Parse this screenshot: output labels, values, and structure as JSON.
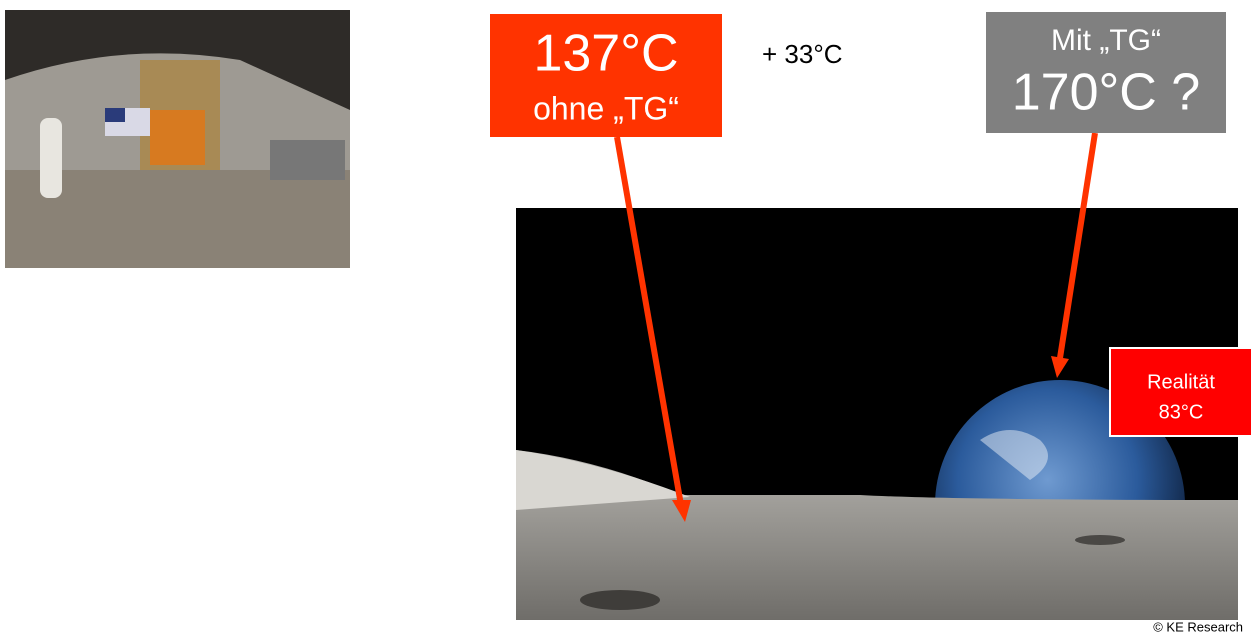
{
  "left_box": {
    "temperature": "137°C",
    "caption": "ohne „TG“"
  },
  "difference": "+ 33°C",
  "right_box": {
    "caption": "Mit „TG“",
    "temperature": "170°C ?"
  },
  "reality_box": {
    "label": "Realität",
    "temperature": "83°C"
  },
  "footer": "© KE Research"
}
